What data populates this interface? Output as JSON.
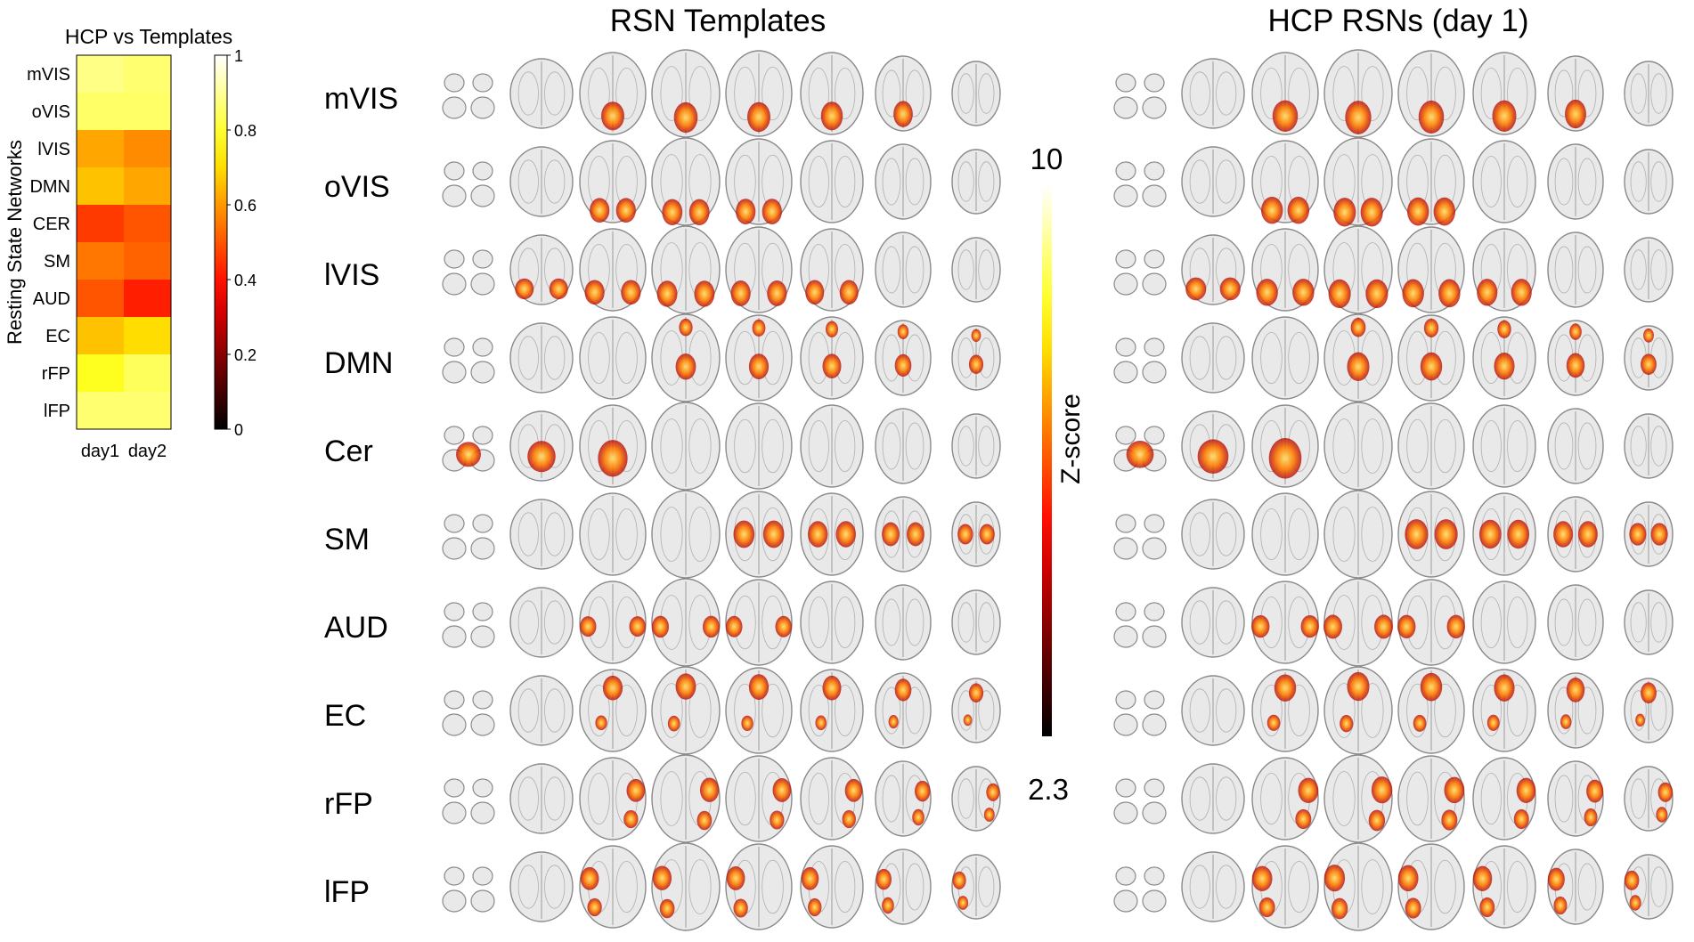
{
  "chart_data": [
    {
      "type": "heatmap",
      "title": "HCP vs Templates",
      "ylabel": "Resting State Networks",
      "xlabel": "",
      "x_categories": [
        "day1",
        "day2"
      ],
      "y_categories": [
        "mVIS",
        "oVIS",
        "lVIS",
        "DMN",
        "CER",
        "SM",
        "AUD",
        "EC",
        "rFP",
        "lFP"
      ],
      "values": [
        [
          0.88,
          0.86
        ],
        [
          0.85,
          0.85
        ],
        [
          0.62,
          0.58
        ],
        [
          0.66,
          0.62
        ],
        [
          0.46,
          0.5
        ],
        [
          0.55,
          0.52
        ],
        [
          0.5,
          0.42
        ],
        [
          0.66,
          0.7
        ],
        [
          0.78,
          0.84
        ],
        [
          0.86,
          0.86
        ]
      ],
      "colorbar": {
        "min": 0,
        "max": 1,
        "ticks": [
          "0",
          "0.2",
          "0.4",
          "0.6",
          "0.8",
          "1"
        ],
        "colormap": "hot"
      }
    }
  ],
  "panels": {
    "left_title": "RSN Templates",
    "right_title": "HCP RSNs (day 1)",
    "row_labels": [
      "mVIS",
      "oVIS",
      "lVIS",
      "DMN",
      "Cer",
      "SM",
      "AUD",
      "EC",
      "rFP",
      "lFP"
    ],
    "slices_per_row": 8
  },
  "zscore_colorbar": {
    "label": "Z-score",
    "max_label": "10",
    "min_label": "2.3",
    "colormap": "hot"
  },
  "colors": {
    "brain_fill": "#e9e9e9",
    "brain_stroke": "#8a8a8a",
    "activation_hot": "#ffe066",
    "activation_mid": "#ff7a00",
    "activation_low": "#b40000"
  }
}
